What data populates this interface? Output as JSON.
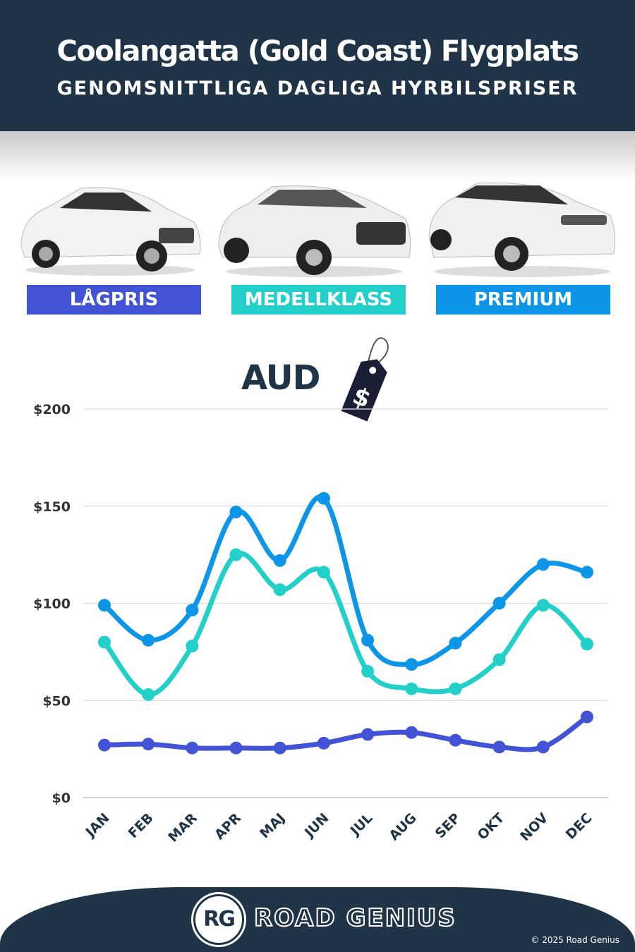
{
  "header": {
    "title": "Coolangatta (Gold Coast) Flygplats",
    "subtitle": "GENOMSNITTLIGA DAGLIGA HYRBILSPRISER"
  },
  "categories": [
    {
      "label": "LÅGPRIS",
      "color": "#4353d6"
    },
    {
      "label": "MEDELLKLASS",
      "color": "#22cfc9"
    },
    {
      "label": "PREMIUM",
      "color": "#0d95e8"
    }
  ],
  "currency": "AUD",
  "price_tag_icon": "$",
  "chart_data": {
    "type": "line",
    "categories": [
      "JAN",
      "FEB",
      "MAR",
      "APR",
      "MAJ",
      "JUN",
      "JUL",
      "AUG",
      "SEP",
      "OKT",
      "NOV",
      "DEC"
    ],
    "yticks": [
      "$0",
      "$50",
      "$100",
      "$150",
      "$200"
    ],
    "ylim": [
      0,
      200
    ],
    "grid": true,
    "series": [
      {
        "name": "LÅGPRIS",
        "color": "#4353d6",
        "values": [
          27,
          27.5,
          25.5,
          25.5,
          25.5,
          28,
          32.5,
          33.5,
          29.5,
          26,
          26,
          41.5
        ]
      },
      {
        "name": "MEDELLKLASS",
        "color": "#22cfc9",
        "values": [
          80,
          53,
          78,
          125,
          107,
          116,
          65,
          56,
          56,
          71,
          99,
          79
        ]
      },
      {
        "name": "PREMIUM",
        "color": "#0d95e8",
        "values": [
          99,
          81,
          96.5,
          147,
          122,
          154,
          81,
          68.5,
          79.5,
          100,
          120,
          116
        ]
      }
    ]
  },
  "footer": {
    "logo": "RG",
    "brand": "ROAD GENIUS",
    "copyright": "© 2025 Road Genius"
  }
}
